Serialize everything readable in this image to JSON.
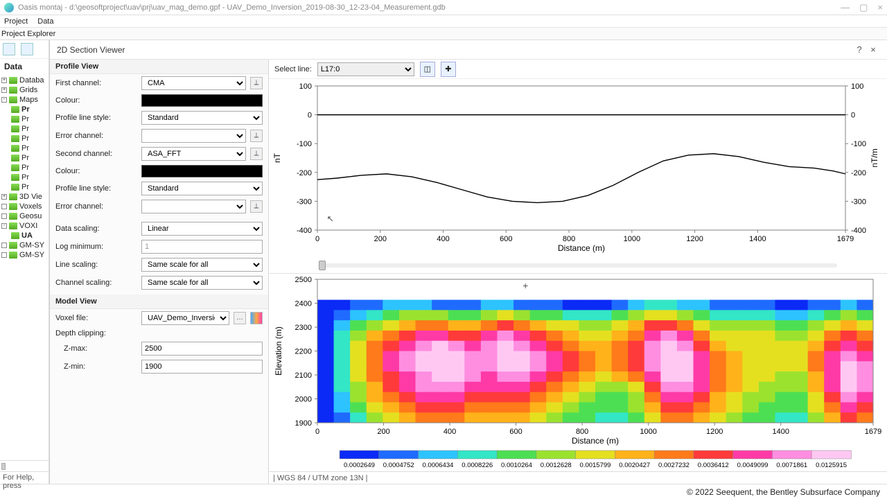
{
  "titlebar": {
    "caption": "Oasis montaj - d:\\geosoftproject\\uav\\prj\\uav_mag_demo.gpf - UAV_Demo_Inversion_2019-08-30_12-23-04_Measurement.gdb"
  },
  "menubar": {
    "items": [
      "Project",
      "Data"
    ]
  },
  "pexp_label": "Project Explorer",
  "sidebar": {
    "data_header": "Data",
    "tree": [
      {
        "lvl": 1,
        "exp": "+",
        "label": "Databa"
      },
      {
        "lvl": 1,
        "exp": "+",
        "label": "Grids"
      },
      {
        "lvl": 1,
        "exp": "-",
        "label": "Maps"
      },
      {
        "lvl": 2,
        "exp": "",
        "label": "Pr",
        "bold": true
      },
      {
        "lvl": 2,
        "exp": "",
        "label": "Pr"
      },
      {
        "lvl": 2,
        "exp": "",
        "label": "Pr"
      },
      {
        "lvl": 2,
        "exp": "",
        "label": "Pr"
      },
      {
        "lvl": 2,
        "exp": "",
        "label": "Pr"
      },
      {
        "lvl": 2,
        "exp": "",
        "label": "Pr"
      },
      {
        "lvl": 2,
        "exp": "",
        "label": "Pr"
      },
      {
        "lvl": 2,
        "exp": "",
        "label": "Pr"
      },
      {
        "lvl": 2,
        "exp": "",
        "label": "Pr"
      },
      {
        "lvl": 1,
        "exp": "+",
        "label": "3D Vie"
      },
      {
        "lvl": 1,
        "exp": "",
        "label": "Voxels"
      },
      {
        "lvl": 1,
        "exp": "",
        "label": "Geosu"
      },
      {
        "lvl": 1,
        "exp": "-",
        "label": "VOXI"
      },
      {
        "lvl": 2,
        "exp": "",
        "label": "UA",
        "bold": true
      },
      {
        "lvl": 1,
        "exp": "",
        "label": "GM-SY"
      },
      {
        "lvl": 1,
        "exp": "",
        "label": "GM-SY"
      }
    ],
    "status": "For Help, press"
  },
  "dialog": {
    "title": "2D Section Viewer",
    "help": "?",
    "close": "×"
  },
  "profile_view": {
    "header": "Profile View",
    "first_channel_label": "First channel:",
    "first_channel": "CMA",
    "colour_label": "Colour:",
    "line_style_label": "Profile line style:",
    "line_style": "Standard",
    "error_channel_label": "Error channel:",
    "error_channel": "",
    "second_channel_label": "Second channel:",
    "second_channel": "ASA_FFT",
    "colour2_label": "Colour:",
    "line_style2_label": "Profile line style:",
    "line_style2": "Standard",
    "error_channel2_label": "Error channel:",
    "error_channel2": "",
    "data_scaling_label": "Data scaling:",
    "data_scaling": "Linear",
    "log_min_label": "Log minimum:",
    "log_min": "1",
    "line_scaling_label": "Line scaling:",
    "line_scaling": "Same scale for all",
    "channel_scaling_label": "Channel scaling:",
    "channel_scaling": "Same scale for all"
  },
  "model_view": {
    "header": "Model View",
    "voxel_label": "Voxel file:",
    "voxel_file": "UAV_Demo_Inversion_A",
    "depth_clip_label": "Depth clipping:",
    "zmax_label": "Z-max:",
    "zmax": "2500",
    "zmin_label": "Z-min:",
    "zmin": "1900"
  },
  "toolbar": {
    "select_line_label": "Select line:",
    "select_line": "L17:0"
  },
  "profile_chart": {
    "x_min": 0,
    "x_max": 1679,
    "y_min": -400,
    "y_max": 100,
    "x_ticks": [
      0,
      200,
      400,
      600,
      800,
      1000,
      1200,
      1400,
      1679
    ],
    "y_ticks": [
      100,
      0,
      -100,
      -200,
      -300,
      -400
    ],
    "y_label_left": "nT",
    "y_label_right": "nT/m",
    "x_label": "Distance (m)",
    "series": [
      {
        "x": 0,
        "y": -225
      },
      {
        "x": 60,
        "y": -220
      },
      {
        "x": 140,
        "y": -210
      },
      {
        "x": 220,
        "y": -205
      },
      {
        "x": 300,
        "y": -215
      },
      {
        "x": 380,
        "y": -235
      },
      {
        "x": 460,
        "y": -260
      },
      {
        "x": 540,
        "y": -285
      },
      {
        "x": 620,
        "y": -300
      },
      {
        "x": 700,
        "y": -305
      },
      {
        "x": 780,
        "y": -300
      },
      {
        "x": 860,
        "y": -280
      },
      {
        "x": 940,
        "y": -245
      },
      {
        "x": 1020,
        "y": -200
      },
      {
        "x": 1100,
        "y": -160
      },
      {
        "x": 1180,
        "y": -140
      },
      {
        "x": 1260,
        "y": -135
      },
      {
        "x": 1340,
        "y": -145
      },
      {
        "x": 1420,
        "y": -165
      },
      {
        "x": 1500,
        "y": -180
      },
      {
        "x": 1580,
        "y": -185
      },
      {
        "x": 1640,
        "y": -195
      },
      {
        "x": 1679,
        "y": -205
      }
    ],
    "grid_color": "#e6e6e6",
    "line_color": "#000000",
    "axis_color": "#808080",
    "tick_fontsize": 11,
    "label_fontsize": 12
  },
  "model_chart": {
    "x_min": 0,
    "x_max": 1679,
    "y_min": 1900,
    "y_max": 2500,
    "x_ticks": [
      0,
      200,
      400,
      600,
      800,
      1000,
      1200,
      1400,
      1679
    ],
    "y_ticks": [
      2500,
      2400,
      2300,
      2200,
      2100,
      2000,
      1900
    ],
    "x_label": "Distance (m)",
    "y_label": "Elevation (m)",
    "axis_color": "#808080",
    "tick_fontsize": 11,
    "label_fontsize": 12,
    "palette": [
      "#0b2af5",
      "#1f6bff",
      "#2dc3ff",
      "#33e6c6",
      "#4ddf53",
      "#9be22f",
      "#e4e020",
      "#ffb21a",
      "#ff7a1a",
      "#ff3a3a",
      "#ff3aa6",
      "#ff8ee0",
      "#ffc8f3"
    ],
    "grid_cols": 34,
    "grid_rows": 12,
    "top_pad_rows": 2,
    "cells_flat": [
      0,
      0,
      1,
      1,
      2,
      2,
      2,
      1,
      1,
      1,
      2,
      2,
      1,
      1,
      1,
      0,
      0,
      0,
      1,
      2,
      3,
      3,
      2,
      2,
      1,
      1,
      1,
      1,
      0,
      0,
      1,
      1,
      2,
      1,
      0,
      1,
      2,
      3,
      4,
      5,
      5,
      5,
      4,
      4,
      5,
      6,
      5,
      4,
      4,
      3,
      3,
      3,
      4,
      5,
      6,
      6,
      5,
      4,
      3,
      3,
      3,
      3,
      2,
      2,
      3,
      4,
      5,
      4,
      0,
      2,
      4,
      5,
      6,
      7,
      8,
      8,
      7,
      7,
      8,
      9,
      8,
      7,
      6,
      6,
      5,
      5,
      6,
      7,
      9,
      9,
      8,
      6,
      5,
      5,
      5,
      5,
      4,
      4,
      5,
      6,
      7,
      6,
      0,
      3,
      5,
      7,
      8,
      9,
      10,
      10,
      9,
      9,
      10,
      11,
      10,
      9,
      8,
      7,
      6,
      6,
      7,
      8,
      10,
      11,
      10,
      8,
      6,
      6,
      6,
      6,
      5,
      5,
      6,
      8,
      9,
      8,
      0,
      3,
      6,
      8,
      9,
      10,
      11,
      12,
      11,
      10,
      11,
      12,
      11,
      10,
      9,
      8,
      7,
      7,
      8,
      9,
      11,
      12,
      11,
      9,
      7,
      6,
      6,
      6,
      6,
      6,
      7,
      9,
      10,
      9,
      0,
      3,
      6,
      8,
      10,
      11,
      12,
      12,
      12,
      11,
      11,
      12,
      12,
      11,
      10,
      9,
      8,
      7,
      8,
      9,
      11,
      12,
      12,
      10,
      8,
      7,
      6,
      6,
      6,
      6,
      8,
      10,
      11,
      10,
      0,
      3,
      6,
      8,
      10,
      11,
      12,
      12,
      12,
      11,
      11,
      12,
      12,
      11,
      10,
      9,
      8,
      7,
      8,
      9,
      11,
      12,
      12,
      10,
      8,
      7,
      6,
      6,
      6,
      6,
      8,
      10,
      12,
      11,
      0,
      3,
      6,
      8,
      9,
      10,
      11,
      12,
      12,
      11,
      10,
      11,
      11,
      10,
      9,
      8,
      7,
      6,
      7,
      8,
      10,
      12,
      12,
      10,
      8,
      7,
      6,
      6,
      5,
      5,
      7,
      10,
      12,
      11,
      0,
      3,
      5,
      7,
      9,
      10,
      11,
      11,
      11,
      10,
      10,
      10,
      10,
      9,
      8,
      7,
      6,
      5,
      5,
      6,
      9,
      11,
      11,
      10,
      8,
      7,
      6,
      5,
      5,
      5,
      7,
      10,
      12,
      11,
      0,
      2,
      5,
      7,
      8,
      9,
      10,
      10,
      10,
      9,
      9,
      9,
      9,
      8,
      7,
      6,
      5,
      4,
      4,
      5,
      8,
      10,
      10,
      9,
      7,
      6,
      5,
      5,
      4,
      4,
      6,
      9,
      11,
      10,
      0,
      2,
      4,
      6,
      7,
      8,
      9,
      9,
      9,
      8,
      8,
      8,
      8,
      7,
      6,
      5,
      4,
      4,
      4,
      5,
      7,
      9,
      9,
      8,
      7,
      6,
      5,
      4,
      4,
      4,
      6,
      8,
      10,
      9,
      0,
      1,
      3,
      5,
      6,
      7,
      8,
      8,
      8,
      7,
      7,
      7,
      7,
      6,
      5,
      4,
      4,
      3,
      3,
      4,
      6,
      8,
      8,
      7,
      6,
      5,
      4,
      4,
      3,
      3,
      5,
      7,
      9,
      8
    ]
  },
  "legend": {
    "values": [
      "0.0002649",
      "0.0004752",
      "0.0006434",
      "0.0008226",
      "0.0010264",
      "0.0012628",
      "0.0015799",
      "0.0020427",
      "0.0027232",
      "0.0036412",
      "0.0049099",
      "0.0071861",
      "0.0125915"
    ]
  },
  "footer_crs": "| WGS 84 / UTM zone 13N |",
  "bottom_copy": "© 2022 Seequent, the Bentley Subsurface Company"
}
